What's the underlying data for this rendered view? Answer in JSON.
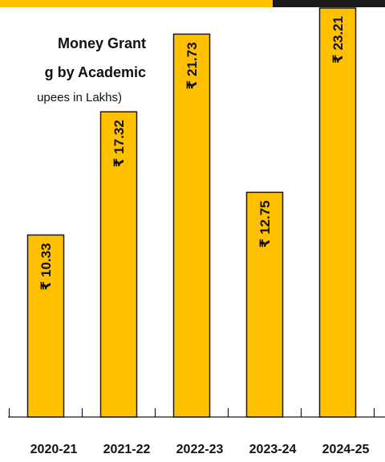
{
  "chart_data": {
    "type": "bar",
    "title_lines": [
      "Money Grant",
      "g by Academic"
    ],
    "subtitle": "upees in Lakhs)",
    "categories": [
      "2020-21",
      "2021-22",
      "2022-23",
      "2023-24",
      "2024-25"
    ],
    "values": [
      10.33,
      17.32,
      21.73,
      12.75,
      23.21
    ],
    "value_prefix": "₹",
    "ylim": [
      0,
      23.21
    ],
    "grid": false,
    "legend": "none",
    "colors": {
      "bar_fill": "#ffc000",
      "bar_stroke": "#1a1a1a",
      "text": "#111111",
      "accent_bar": "#ffc000",
      "dark_bar": "#1a1a1a"
    }
  }
}
